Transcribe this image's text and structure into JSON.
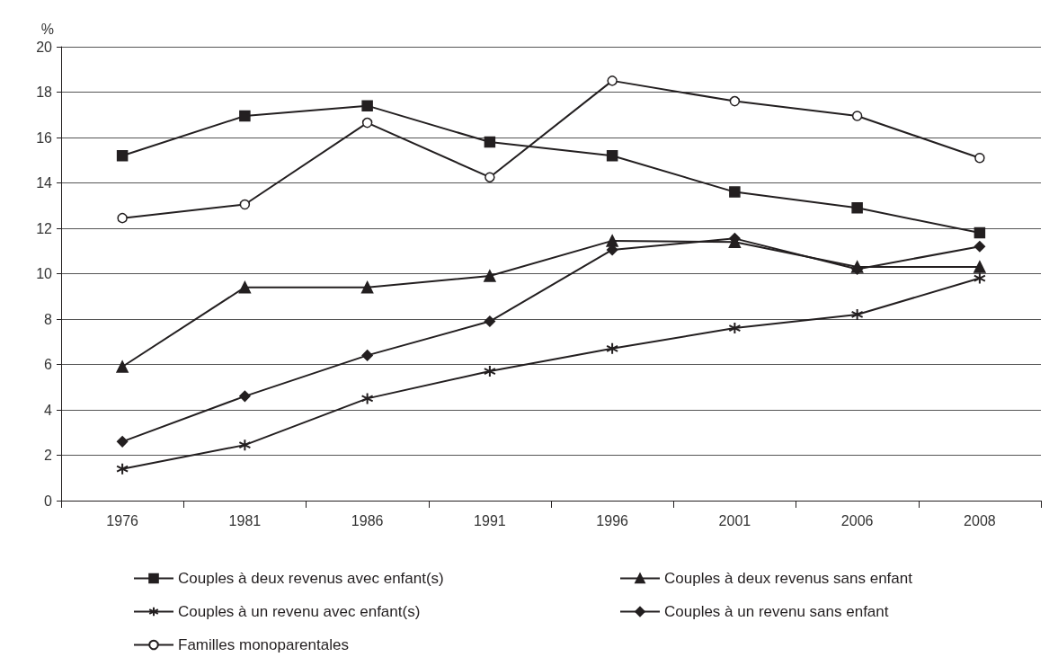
{
  "chart_data": {
    "type": "line",
    "ylabel": "%",
    "categories": [
      "1976",
      "1981",
      "1986",
      "1991",
      "1996",
      "2001",
      "2006",
      "2008"
    ],
    "series": [
      {
        "name": "Couples à deux revenus avec enfant(s)",
        "color": "#231f20",
        "marker": "square",
        "values": [
          15.2,
          16.95,
          17.4,
          15.8,
          15.2,
          13.6,
          12.9,
          11.8
        ]
      },
      {
        "name": "Couples à deux revenus sans enfant",
        "color": "#231f20",
        "marker": "triangle",
        "values": [
          5.9,
          9.4,
          9.4,
          9.9,
          11.45,
          11.4,
          10.3,
          10.3
        ]
      },
      {
        "name": "Couples à un revenu avec enfant(s)",
        "color": "#231f20",
        "marker": "cross",
        "values": [
          1.4,
          2.45,
          4.5,
          5.7,
          6.7,
          7.6,
          8.2,
          9.8
        ]
      },
      {
        "name": "Couples à un revenu sans enfant",
        "color": "#231f20",
        "marker": "diamond",
        "values": [
          2.6,
          4.6,
          6.4,
          7.9,
          11.05,
          11.55,
          10.2,
          11.2
        ]
      },
      {
        "name": "Familles monoparentales",
        "color": "#231f20",
        "marker": "circle",
        "values": [
          12.45,
          13.05,
          16.65,
          14.25,
          18.5,
          17.6,
          16.95,
          15.1
        ]
      }
    ],
    "ylim": [
      0,
      20
    ],
    "yticks": [
      0,
      2,
      4,
      6,
      8,
      10,
      12,
      14,
      16,
      18,
      20
    ],
    "grid": "y",
    "legend": "bottom",
    "line_style": "solid"
  }
}
